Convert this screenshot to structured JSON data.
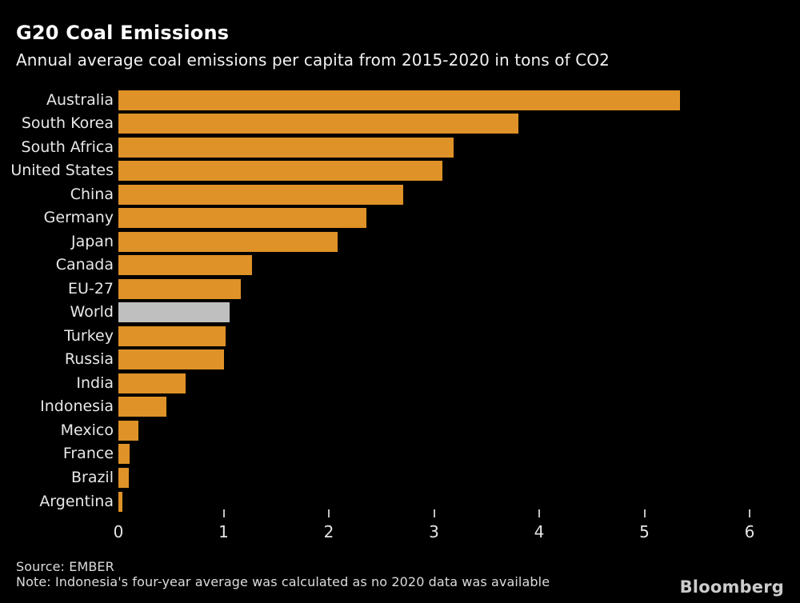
{
  "header": {
    "title": "G20 Coal Emissions",
    "subtitle": "Annual average coal emissions per capita from 2015-2020 in tons of CO2"
  },
  "chart_data": {
    "type": "bar",
    "orientation": "horizontal",
    "title": "G20 Coal Emissions",
    "subtitle": "Annual average coal emissions per capita from 2015-2020 in tons of CO2",
    "xlabel": "",
    "ylabel": "",
    "xlim": [
      0,
      6
    ],
    "x_ticks": [
      0,
      1,
      2,
      3,
      4,
      5,
      6
    ],
    "grid": false,
    "legend": "none",
    "categories": [
      "Australia",
      "South Korea",
      "South Africa",
      "United States",
      "China",
      "Germany",
      "Japan",
      "Canada",
      "EU-27",
      "World",
      "Turkey",
      "Russia",
      "India",
      "Indonesia",
      "Mexico",
      "France",
      "Brazil",
      "Argentina"
    ],
    "values": [
      5.34,
      3.8,
      3.19,
      3.08,
      2.71,
      2.36,
      2.08,
      1.27,
      1.16,
      1.06,
      1.02,
      1.0,
      0.64,
      0.46,
      0.19,
      0.11,
      0.1,
      0.04
    ],
    "highlight_category": "World",
    "colors": {
      "bar": "#DF9227",
      "highlight_bar": "#BFBFBF",
      "background": "#000000",
      "label_text": "#E8E8E8",
      "tick": "#C0C0C0"
    }
  },
  "footer": {
    "source": "Source: EMBER",
    "note": "Note: Indonesia's four-year average was calculated as no 2020 data was available",
    "brand": "Bloomberg"
  }
}
